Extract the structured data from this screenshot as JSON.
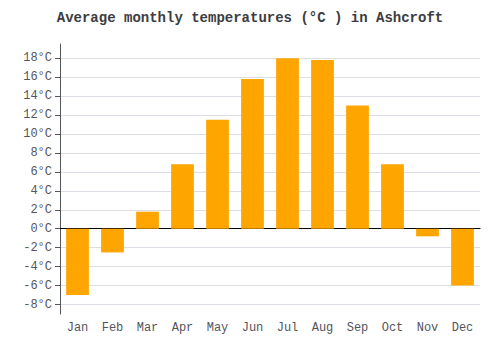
{
  "chart_data": {
    "type": "bar",
    "title": "Average monthly temperatures (°C ) in Ashcroft",
    "categories": [
      "Jan",
      "Feb",
      "Mar",
      "Apr",
      "May",
      "Jun",
      "Jul",
      "Aug",
      "Sep",
      "Oct",
      "Nov",
      "Dec"
    ],
    "values": [
      -7.0,
      -2.5,
      1.8,
      6.8,
      11.5,
      15.8,
      18.0,
      17.8,
      13.0,
      6.8,
      -0.8,
      -6.0
    ],
    "color": "#FFA500",
    "ylim": [
      -9,
      19.5
    ],
    "yticks": [
      {
        "value": -8,
        "label": "-8°C"
      },
      {
        "value": -6,
        "label": "-6°C"
      },
      {
        "value": -4,
        "label": "-4°C"
      },
      {
        "value": -2,
        "label": "-2°C"
      },
      {
        "value": 0,
        "label": "0°C"
      },
      {
        "value": 2,
        "label": "2°C"
      },
      {
        "value": 4,
        "label": "4°C"
      },
      {
        "value": 6,
        "label": "6°C"
      },
      {
        "value": 8,
        "label": "8°C"
      },
      {
        "value": 10,
        "label": "10°C"
      },
      {
        "value": 12,
        "label": "12°C"
      },
      {
        "value": 14,
        "label": "14°C"
      },
      {
        "value": 16,
        "label": "16°C"
      },
      {
        "value": 18,
        "label": "18°C"
      }
    ],
    "grid": true
  }
}
